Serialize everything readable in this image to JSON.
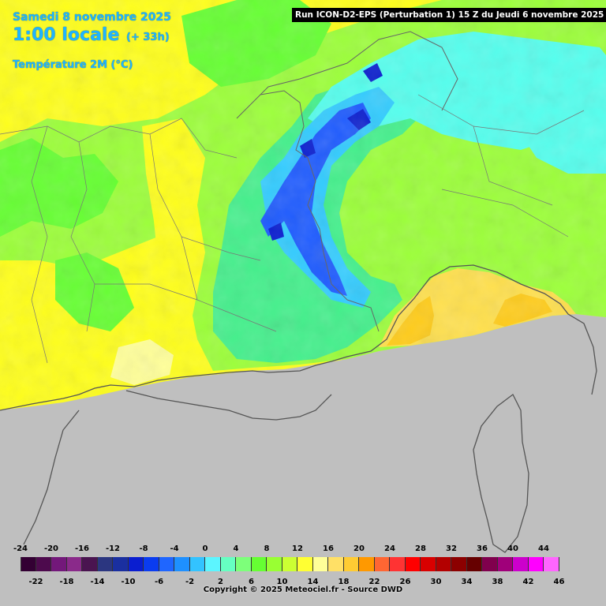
{
  "header": {
    "date": "Samedi 8 novembre 2025",
    "time": "1:00 locale",
    "offset": "(+ 33h)",
    "variable": "Température 2M (°C)"
  },
  "run_info": "Run ICON-D2-EPS (Perturbation 1) 15 Z du Jeudi 6 novembre 2025",
  "legend": {
    "top_labels": [
      "-24",
      "-20",
      "-16",
      "-12",
      "-8",
      "-4",
      "0",
      "4",
      "8",
      "12",
      "16",
      "20",
      "24",
      "28",
      "32",
      "36",
      "40",
      "44"
    ],
    "bottom_labels": [
      "-22",
      "-18",
      "-14",
      "-10",
      "-6",
      "-2",
      "2",
      "6",
      "10",
      "14",
      "18",
      "22",
      "26",
      "30",
      "34",
      "38",
      "42",
      "46"
    ],
    "colors": [
      "#330033",
      "#4d0a4d",
      "#73187a",
      "#8a2a8a",
      "#4a1450",
      "#2b3680",
      "#1a2fa0",
      "#0a1ed0",
      "#0a3cf0",
      "#1f66ff",
      "#1e90ff",
      "#33c3ff",
      "#5cf5ff",
      "#66ffc2",
      "#7dff7a",
      "#66ff33",
      "#99ff33",
      "#ccff33",
      "#ffff33",
      "#ffff99",
      "#ffe066",
      "#ffcc33",
      "#ff9900",
      "#ff6633",
      "#ff3333",
      "#ff0000",
      "#d90000",
      "#b30000",
      "#8c0000",
      "#660000",
      "#80004d",
      "#a0007a",
      "#cc00cc",
      "#ff00ff",
      "#ff66ff"
    ]
  },
  "copyright": "Copyright © 2025 Meteociel.fr - Source DWD"
}
